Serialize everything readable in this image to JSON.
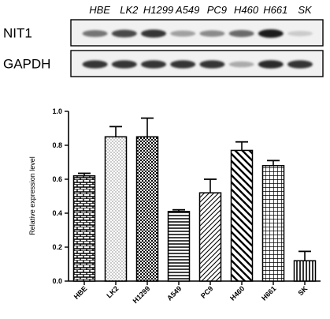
{
  "blot": {
    "lanes": [
      "HBE",
      "LK2",
      "H1299",
      "A549",
      "PC9",
      "H460",
      "H661",
      "SK"
    ],
    "rows": [
      {
        "label": "NIT1",
        "intensities": [
          0.55,
          0.75,
          0.85,
          0.35,
          0.45,
          0.6,
          0.95,
          0.15
        ]
      },
      {
        "label": "GAPDH",
        "intensities": [
          0.85,
          0.85,
          0.85,
          0.85,
          0.85,
          0.3,
          0.9,
          0.85
        ]
      }
    ]
  },
  "chart_data": {
    "type": "bar",
    "categories": [
      "HBE",
      "LK2",
      "H1299",
      "A549",
      "PC9",
      "H460",
      "H661",
      "SK"
    ],
    "values": [
      0.62,
      0.85,
      0.85,
      0.41,
      0.52,
      0.77,
      0.68,
      0.12
    ],
    "errors": [
      0.015,
      0.06,
      0.11,
      0.01,
      0.08,
      0.05,
      0.03,
      0.055
    ],
    "patterns": [
      "brick",
      "dots",
      "checker",
      "hlines",
      "diag-right",
      "diag-left",
      "grid",
      "vlines"
    ],
    "ylabel": "Relative expression level",
    "ylim": [
      0,
      1.0
    ],
    "yticks": [
      0.0,
      0.2,
      0.4,
      0.6,
      0.8,
      1.0
    ],
    "ytick_labels": [
      "0.0",
      "0.2",
      "0.4",
      "0.6",
      "0.8",
      "1.0"
    ],
    "grid": false,
    "legend": "none"
  }
}
